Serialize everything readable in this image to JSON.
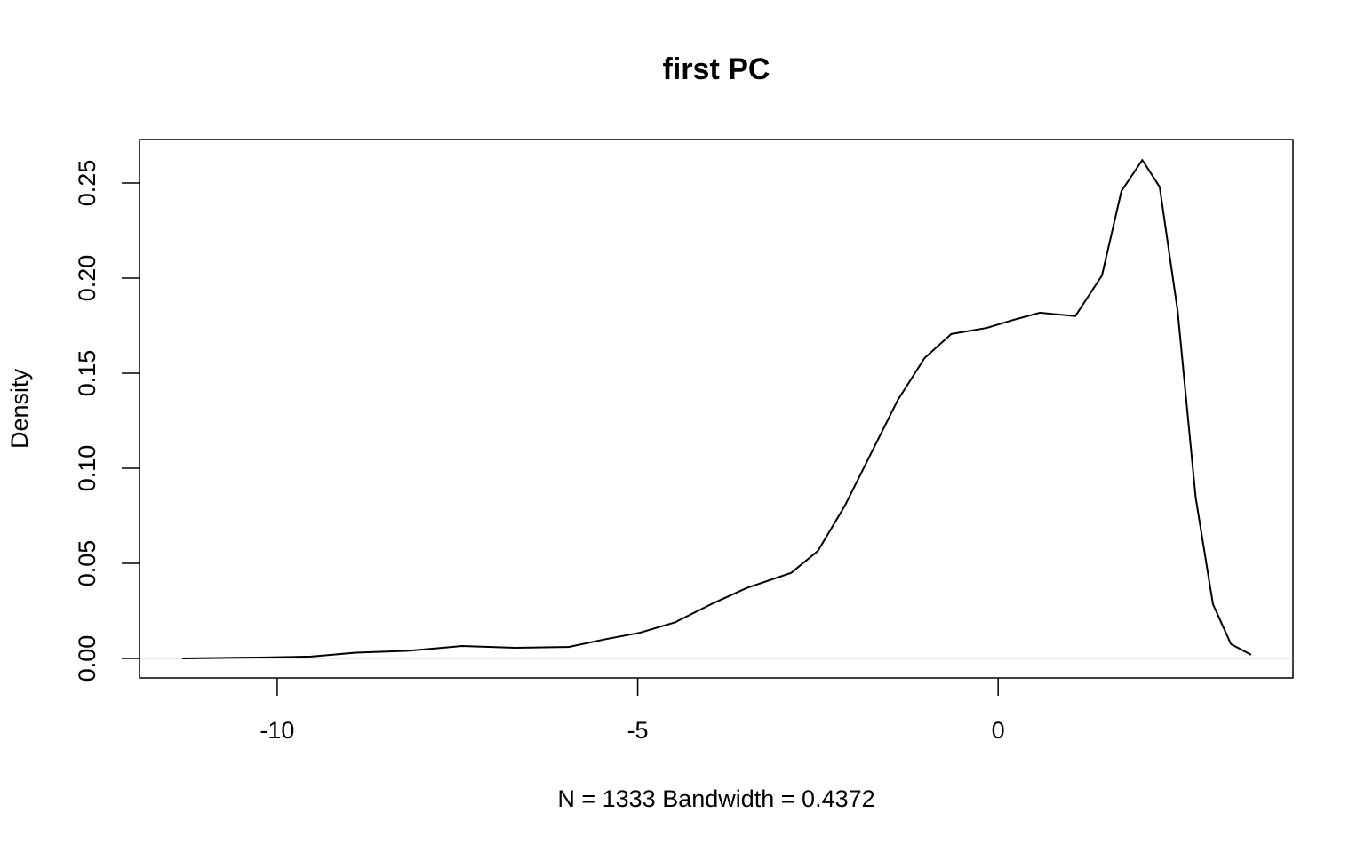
{
  "chart_data": {
    "type": "line",
    "title": "first PC",
    "x_label": "N = 1333   Bandwidth = 0.4372",
    "y_label": "Density",
    "x": [
      -11.32,
      -10.15,
      -9.53,
      -8.91,
      -8.18,
      -7.44,
      -6.7,
      -5.96,
      -5.46,
      -4.97,
      -4.48,
      -3.98,
      -3.49,
      -2.87,
      -2.5,
      -2.13,
      -1.76,
      -1.39,
      -1.02,
      -0.65,
      -0.16,
      0.21,
      0.58,
      1.07,
      1.44,
      1.71,
      2.0,
      2.24,
      2.49,
      2.74,
      2.98,
      3.23,
      3.51
    ],
    "series": [
      {
        "color": "#000000",
        "values": [
          0,
          0.0005,
          0.001,
          0.003,
          0.004,
          0.0065,
          0.0056,
          0.006,
          0.01,
          0.0135,
          0.019,
          0.0285,
          0.037,
          0.045,
          0.0565,
          0.08,
          0.108,
          0.136,
          0.158,
          0.1706,
          0.1738,
          0.178,
          0.1818,
          0.18,
          0.2014,
          0.2458,
          0.2621,
          0.248,
          0.1827,
          0.0846,
          0.0285,
          0.0075,
          0.0019
        ]
      }
    ],
    "xlim": [
      -11.91,
      4.09
    ],
    "ylim": [
      -0.0103,
      0.2729
    ],
    "xticks": [
      -10,
      -5,
      0
    ],
    "yticks": [
      {
        "value": 0,
        "label": "0.00"
      },
      0.05,
      {
        "value": 0.1,
        "label": "0.10"
      },
      0.15,
      {
        "value": 0.2,
        "label": "0.20"
      },
      0.25
    ],
    "zero_line": true
  }
}
